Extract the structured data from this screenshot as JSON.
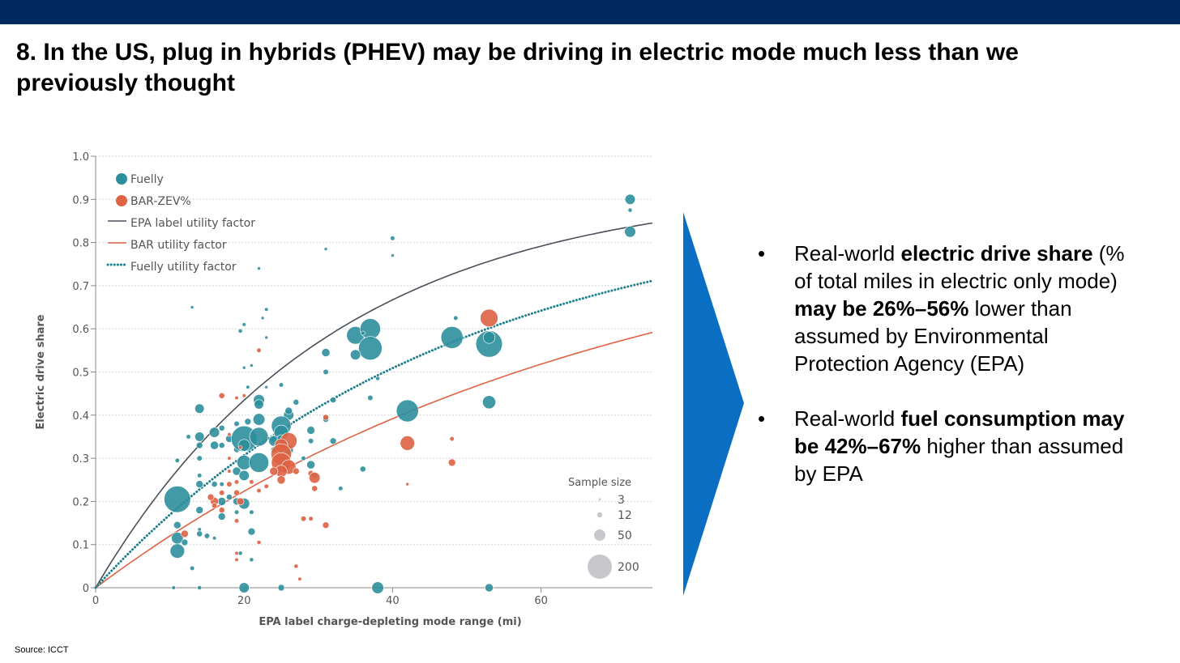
{
  "slide": {
    "title": "8. In the US, plug in hybrids (PHEV) may be driving in electric mode much less than we previously thought",
    "source": "Source: ICCT",
    "bullets": [
      {
        "marker": "•",
        "parts": [
          {
            "text": "Real-world ",
            "bold": false
          },
          {
            "text": "electric drive share",
            "bold": true
          },
          {
            "text": " (% of total miles in electric only mode) ",
            "bold": false
          },
          {
            "text": "may be 26%–56%",
            "bold": true
          },
          {
            "text": " lower than assumed by Environmental Protection Agency (EPA)",
            "bold": false
          }
        ]
      },
      {
        "marker": "•",
        "parts": [
          {
            "text": "Real-world ",
            "bold": false
          },
          {
            "text": "fuel consumption may be 42%–67%",
            "bold": true
          },
          {
            "text": " higher than assumed by EPA",
            "bold": false
          }
        ]
      }
    ],
    "colors": {
      "topbar": "#012a5e",
      "arrow": "#0a6fc2",
      "fuelly": "#2e8f9c",
      "bar": "#de6243",
      "epa_line": "#4a4f5a",
      "grid": "#c8c8c8",
      "sample_size": "#c8c8cc"
    }
  },
  "chart_data": {
    "type": "scatter",
    "xlabel": "EPA label charge-depleting mode range (mi)",
    "ylabel": "Electric drive share",
    "xlim": [
      0,
      75
    ],
    "ylim": [
      0,
      1.0
    ],
    "x_ticks": [
      0,
      20,
      40,
      60
    ],
    "y_ticks": [
      0,
      0.1,
      0.2,
      0.3,
      0.4,
      0.5,
      0.6,
      0.7,
      0.8,
      0.9,
      1.0
    ],
    "y_tick_labels": [
      "0",
      "0.1",
      "0.2",
      "0.3",
      "0.4",
      "0.5",
      "0.6",
      "0.7",
      "0.8",
      "0.9",
      "1.0"
    ],
    "grid": "horizontal dotted",
    "legend_position": "top-left",
    "legend": [
      {
        "label": "Fuelly",
        "kind": "dot",
        "color": "#2e8f9c"
      },
      {
        "label": "BAR-ZEV%",
        "kind": "dot",
        "color": "#de6243"
      },
      {
        "label": "EPA label utility factor",
        "kind": "line",
        "color": "#4a4f5a"
      },
      {
        "label": "BAR utility factor",
        "kind": "line",
        "color": "#de6243"
      },
      {
        "label": "Fuelly utility factor",
        "kind": "dotted",
        "color": "#1d7f8c"
      }
    ],
    "size_legend": {
      "title": "Sample size",
      "entries": [
        {
          "label": "3",
          "value": 3
        },
        {
          "label": "12",
          "value": 12
        },
        {
          "label": "50",
          "value": 50
        },
        {
          "label": "200",
          "value": 200
        }
      ]
    },
    "curves": [
      {
        "name": "EPA label utility factor",
        "style": "solid",
        "color": "#4a4f5a",
        "tau": 32,
        "asymptote": 0.935
      },
      {
        "name": "BAR utility factor",
        "style": "solid",
        "color": "#de6243",
        "tau": 70,
        "asymptote": 0.9
      },
      {
        "name": "Fuelly utility factor",
        "style": "dotted",
        "color": "#1d7f8c",
        "tau": 48,
        "asymptote": 0.9
      }
    ],
    "series": [
      {
        "name": "Fuelly",
        "color": "#2e8f9c",
        "points": [
          [
            72.0,
            0.9,
            30
          ],
          [
            72.0,
            0.875,
            5
          ],
          [
            72.0,
            0.825,
            35
          ],
          [
            40.0,
            0.81,
            6
          ],
          [
            40.0,
            0.77,
            3
          ],
          [
            31.0,
            0.785,
            3
          ],
          [
            22.0,
            0.74,
            3
          ],
          [
            13.0,
            0.65,
            3
          ],
          [
            23.0,
            0.645,
            4
          ],
          [
            22.5,
            0.625,
            3
          ],
          [
            20.0,
            0.61,
            4
          ],
          [
            19.5,
            0.595,
            5
          ],
          [
            23.0,
            0.58,
            3
          ],
          [
            35.0,
            0.585,
            90
          ],
          [
            37.0,
            0.6,
            120
          ],
          [
            37.0,
            0.555,
            160
          ],
          [
            35.0,
            0.54,
            30
          ],
          [
            36.0,
            0.59,
            5
          ],
          [
            48.0,
            0.58,
            140
          ],
          [
            48.5,
            0.625,
            6
          ],
          [
            53.0,
            0.565,
            200
          ],
          [
            53.0,
            0.58,
            40
          ],
          [
            53.0,
            0.43,
            50
          ],
          [
            31.0,
            0.545,
            20
          ],
          [
            38.0,
            0.485,
            5
          ],
          [
            42.0,
            0.41,
            140
          ],
          [
            32.0,
            0.435,
            10
          ],
          [
            37.0,
            0.44,
            8
          ],
          [
            31.0,
            0.5,
            8
          ],
          [
            20.0,
            0.51,
            3
          ],
          [
            21.0,
            0.515,
            3
          ],
          [
            20.5,
            0.465,
            4
          ],
          [
            23.0,
            0.465,
            3
          ],
          [
            25.0,
            0.47,
            6
          ],
          [
            22.0,
            0.435,
            35
          ],
          [
            22.0,
            0.425,
            25
          ],
          [
            22.0,
            0.39,
            40
          ],
          [
            26.0,
            0.4,
            30
          ],
          [
            26.0,
            0.41,
            15
          ],
          [
            27.0,
            0.43,
            10
          ],
          [
            19.0,
            0.38,
            8
          ],
          [
            17.0,
            0.37,
            10
          ],
          [
            20.5,
            0.385,
            12
          ],
          [
            14.0,
            0.415,
            25
          ],
          [
            12.5,
            0.35,
            6
          ],
          [
            14.0,
            0.35,
            25
          ],
          [
            16.0,
            0.36,
            30
          ],
          [
            16.0,
            0.33,
            20
          ],
          [
            17.0,
            0.33,
            10
          ],
          [
            14.0,
            0.33,
            12
          ],
          [
            11.0,
            0.295,
            6
          ],
          [
            14.0,
            0.3,
            8
          ],
          [
            18.0,
            0.345,
            15
          ],
          [
            19.0,
            0.32,
            10
          ],
          [
            20.0,
            0.345,
            190
          ],
          [
            20.0,
            0.33,
            40
          ],
          [
            22.0,
            0.35,
            100
          ],
          [
            20.0,
            0.29,
            60
          ],
          [
            22.0,
            0.29,
            110
          ],
          [
            19.0,
            0.27,
            20
          ],
          [
            20.0,
            0.26,
            30
          ],
          [
            24.0,
            0.345,
            15
          ],
          [
            25.0,
            0.375,
            110
          ],
          [
            25.0,
            0.36,
            60
          ],
          [
            24.0,
            0.34,
            30
          ],
          [
            24.0,
            0.32,
            10
          ],
          [
            26.0,
            0.32,
            25
          ],
          [
            25.0,
            0.345,
            20
          ],
          [
            29.0,
            0.365,
            18
          ],
          [
            29.0,
            0.34,
            8
          ],
          [
            28.0,
            0.3,
            6
          ],
          [
            29.0,
            0.285,
            20
          ],
          [
            29.5,
            0.26,
            8
          ],
          [
            31.0,
            0.39,
            10
          ],
          [
            32.0,
            0.34,
            12
          ],
          [
            33.0,
            0.23,
            6
          ],
          [
            36.0,
            0.275,
            10
          ],
          [
            14.0,
            0.26,
            6
          ],
          [
            14.0,
            0.24,
            15
          ],
          [
            16.0,
            0.24,
            10
          ],
          [
            17.0,
            0.24,
            6
          ],
          [
            17.0,
            0.2,
            20
          ],
          [
            18.0,
            0.21,
            10
          ],
          [
            19.0,
            0.2,
            15
          ],
          [
            20.0,
            0.195,
            35
          ],
          [
            19.0,
            0.175,
            6
          ],
          [
            21.0,
            0.175,
            6
          ],
          [
            17.0,
            0.165,
            15
          ],
          [
            14.0,
            0.18,
            15
          ],
          [
            11.0,
            0.205,
            200
          ],
          [
            11.0,
            0.145,
            15
          ],
          [
            11.0,
            0.115,
            40
          ],
          [
            11.0,
            0.085,
            60
          ],
          [
            12.0,
            0.105,
            12
          ],
          [
            14.0,
            0.135,
            4
          ],
          [
            15.0,
            0.12,
            8
          ],
          [
            14.0,
            0.125,
            10
          ],
          [
            16.0,
            0.115,
            4
          ],
          [
            21.0,
            0.13,
            15
          ],
          [
            13.0,
            0.045,
            6
          ],
          [
            21.0,
            0.065,
            5
          ],
          [
            19.5,
            0.08,
            5
          ],
          [
            20.0,
            0.0,
            30
          ],
          [
            25.0,
            0.0,
            12
          ],
          [
            38.0,
            0.0,
            40
          ],
          [
            53.0,
            0.0,
            20
          ],
          [
            14.0,
            0.0,
            5
          ],
          [
            10.5,
            0.0,
            4
          ]
        ]
      },
      {
        "name": "BAR-ZEV%",
        "color": "#de6243",
        "points": [
          [
            53.0,
            0.625,
            90
          ],
          [
            22.0,
            0.55,
            6
          ],
          [
            17.0,
            0.445,
            10
          ],
          [
            20.0,
            0.445,
            4
          ],
          [
            19.0,
            0.44,
            4
          ],
          [
            31.0,
            0.395,
            10
          ],
          [
            42.0,
            0.335,
            60
          ],
          [
            48.0,
            0.345,
            6
          ],
          [
            48.0,
            0.29,
            15
          ],
          [
            26.0,
            0.34,
            80
          ],
          [
            25.0,
            0.33,
            50
          ],
          [
            25.0,
            0.31,
            120
          ],
          [
            25.0,
            0.29,
            110
          ],
          [
            26.0,
            0.28,
            60
          ],
          [
            25.0,
            0.27,
            40
          ],
          [
            25.0,
            0.25,
            20
          ],
          [
            24.0,
            0.27,
            20
          ],
          [
            27.0,
            0.27,
            12
          ],
          [
            29.0,
            0.265,
            10
          ],
          [
            29.5,
            0.255,
            35
          ],
          [
            29.5,
            0.23,
            10
          ],
          [
            23.0,
            0.235,
            6
          ],
          [
            22.0,
            0.225,
            6
          ],
          [
            21.0,
            0.245,
            6
          ],
          [
            19.0,
            0.245,
            6
          ],
          [
            18.0,
            0.24,
            8
          ],
          [
            19.0,
            0.22,
            10
          ],
          [
            19.5,
            0.2,
            15
          ],
          [
            17.0,
            0.22,
            8
          ],
          [
            16.0,
            0.2,
            20
          ],
          [
            15.5,
            0.21,
            12
          ],
          [
            16.0,
            0.19,
            8
          ],
          [
            17.0,
            0.18,
            10
          ],
          [
            19.0,
            0.155,
            6
          ],
          [
            12.0,
            0.125,
            15
          ],
          [
            22.0,
            0.105,
            5
          ],
          [
            28.0,
            0.16,
            8
          ],
          [
            29.0,
            0.16,
            6
          ],
          [
            31.0,
            0.145,
            12
          ],
          [
            42.0,
            0.24,
            3
          ],
          [
            27.0,
            0.05,
            5
          ],
          [
            27.5,
            0.02,
            4
          ],
          [
            19.0,
            0.065,
            4
          ],
          [
            19.0,
            0.08,
            4
          ],
          [
            18.0,
            0.27,
            4
          ],
          [
            18.0,
            0.3,
            4
          ],
          [
            18.0,
            0.355,
            4
          ],
          [
            19.5,
            0.325,
            4
          ]
        ]
      }
    ]
  }
}
